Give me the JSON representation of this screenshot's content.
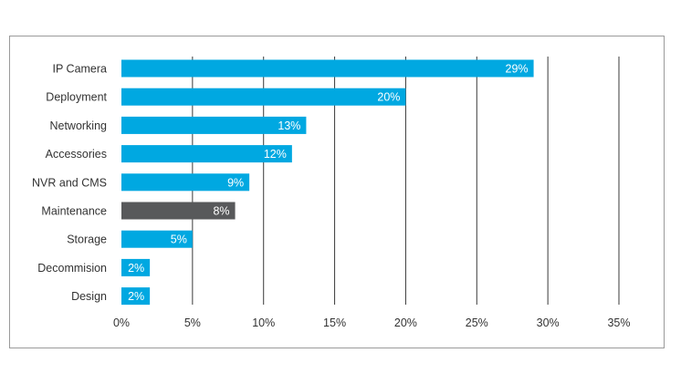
{
  "chart_data": {
    "type": "bar",
    "orientation": "horizontal",
    "categories": [
      "IP Camera",
      "Deployment",
      "Networking",
      "Accessories",
      "NVR and CMS",
      "Maintenance",
      "Storage",
      "Decommision",
      "Design"
    ],
    "values": [
      29,
      20,
      13,
      12,
      9,
      8,
      5,
      2,
      2
    ],
    "value_labels": [
      "29%",
      "20%",
      "13%",
      "12%",
      "9%",
      "8%",
      "5%",
      "2%",
      "2%"
    ],
    "xlim": [
      0,
      35
    ],
    "x_ticks": [
      0,
      5,
      10,
      15,
      20,
      25,
      30,
      35
    ],
    "x_tick_labels": [
      "0%",
      "5%",
      "10%",
      "15%",
      "20%",
      "25%",
      "30%",
      "35%"
    ],
    "grid": "vertical",
    "legend": "none",
    "highlight_category": "Maintenance",
    "title": "",
    "xlabel": "",
    "ylabel": ""
  },
  "colors": {
    "bar_default": "#00a8e1",
    "bar_highlight": "#58595b",
    "grid": "#3a3a3a",
    "category_text": "#333333",
    "tick_text": "#333333",
    "value_label_text": "#ffffff",
    "frame_border": "#9a9a9a"
  }
}
